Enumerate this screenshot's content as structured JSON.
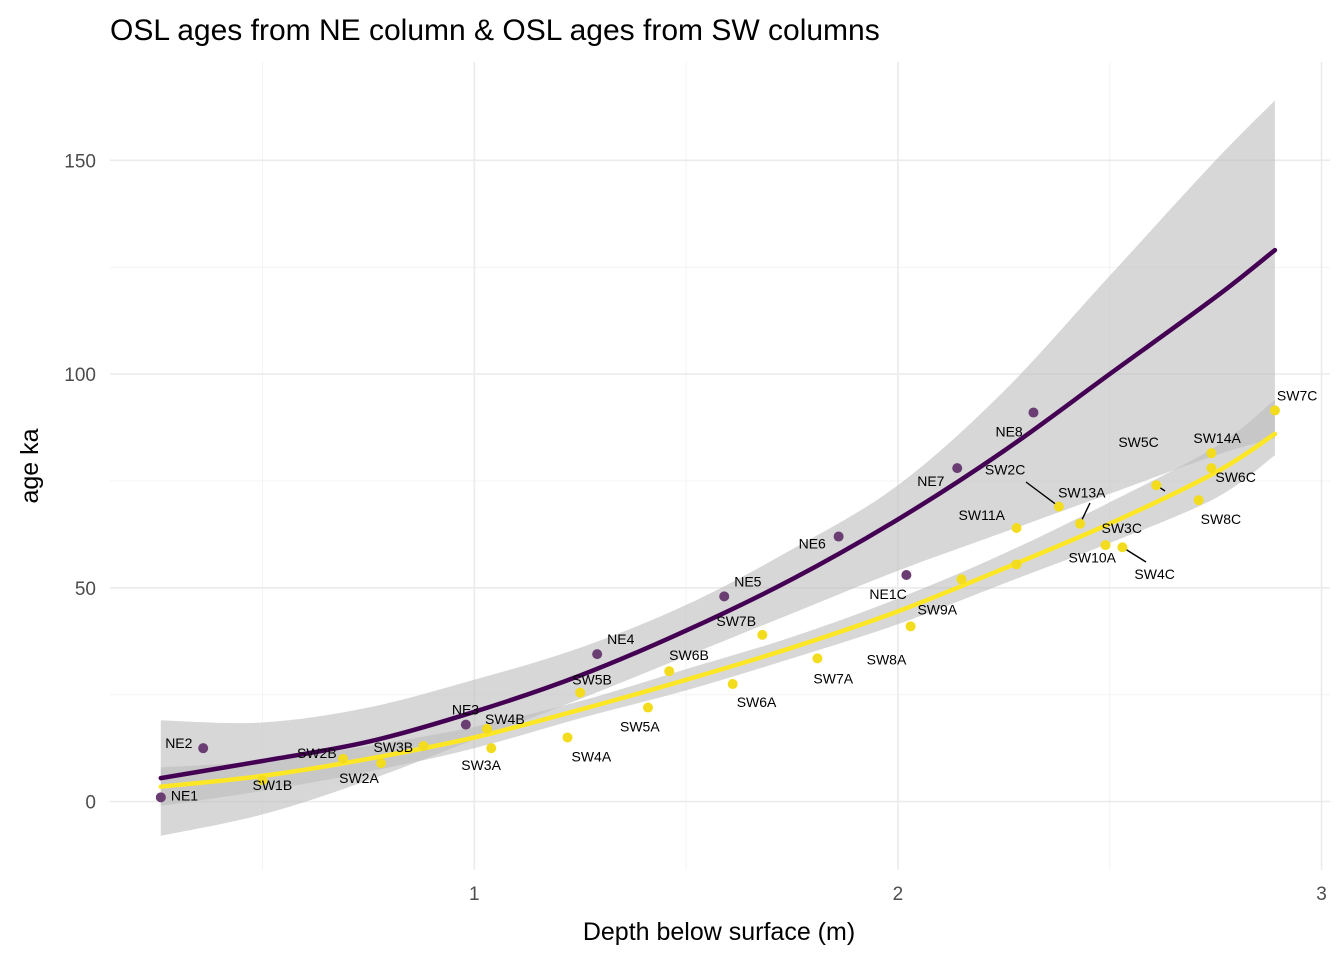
{
  "chart_data": {
    "type": "scatter",
    "title": "OSL ages from NE column & OSL ages from SW columns",
    "xlabel": "Depth below surface (m)",
    "ylabel": "age ka",
    "xlim": [
      0.14,
      3.02
    ],
    "ylim": [
      -16,
      173
    ],
    "x_ticks": [
      1,
      2,
      3
    ],
    "y_ticks": [
      0,
      50,
      100,
      150
    ],
    "grid": true,
    "legend": "none",
    "colors": {
      "ne": "#440154",
      "ne_points": "#6a3d73",
      "sw": "#fde725",
      "sw_points": "#f3dc1d",
      "ribbon": "#bdbdbd",
      "grid": "#ebebeb"
    },
    "series": [
      {
        "points": [
          {
            "label": "NE1",
            "x": 0.26,
            "y": 1
          },
          {
            "label": "NE2",
            "x": 0.36,
            "y": 12.5
          },
          {
            "label": "NE3",
            "x": 0.98,
            "y": 18
          },
          {
            "label": "NE4",
            "x": 1.29,
            "y": 34.5
          },
          {
            "label": "NE5",
            "x": 1.59,
            "y": 48
          },
          {
            "label": "NE6",
            "x": 1.86,
            "y": 62
          },
          {
            "label": "NE1C",
            "x": 2.02,
            "y": 53
          },
          {
            "label": "NE7",
            "x": 2.14,
            "y": 78
          },
          {
            "label": "NE8",
            "x": 2.32,
            "y": 91
          }
        ],
        "fit": {
          "x": [
            0.26,
            0.5,
            0.75,
            1.0,
            1.25,
            1.5,
            1.75,
            2.0,
            2.25,
            2.5,
            2.75,
            2.89
          ],
          "y": [
            5.5,
            9.5,
            14,
            21,
            29.5,
            40,
            52,
            66,
            82,
            100,
            118,
            129
          ],
          "lower": [
            -8,
            -3,
            5,
            14.5,
            24,
            34,
            44,
            54,
            63,
            72,
            81,
            85
          ],
          "upper": [
            19,
            18.5,
            22,
            28.5,
            36,
            46,
            59,
            74,
            96,
            123,
            150,
            164
          ]
        }
      },
      {
        "points": [
          {
            "label": "SW1B",
            "x": 0.5,
            "y": 5
          },
          {
            "label": "SW2B",
            "x": 0.69,
            "y": 10
          },
          {
            "label": "SW2A",
            "x": 0.78,
            "y": 9
          },
          {
            "label": "SW3B",
            "x": 0.88,
            "y": 13
          },
          {
            "label": "SW3A",
            "x": 1.04,
            "y": 12.5
          },
          {
            "label": "SW4B",
            "x": 1.03,
            "y": 17
          },
          {
            "label": "SW4A",
            "x": 1.22,
            "y": 15
          },
          {
            "label": "SW5B",
            "x": 1.25,
            "y": 25.5
          },
          {
            "label": "SW5A",
            "x": 1.41,
            "y": 22
          },
          {
            "label": "SW6B",
            "x": 1.46,
            "y": 30.5
          },
          {
            "label": "SW6A",
            "x": 1.61,
            "y": 27.5
          },
          {
            "label": "SW7B",
            "x": 1.68,
            "y": 39
          },
          {
            "label": "SW7A",
            "x": 1.81,
            "y": 33.5
          },
          {
            "label": "SW8A",
            "x": 2.03,
            "y": 41
          },
          {
            "label": "SW9A",
            "x": 2.15,
            "y": 52
          },
          {
            "label": "SW10A",
            "x": 2.28,
            "y": 55.5
          },
          {
            "label": "SW11A",
            "x": 2.28,
            "y": 64
          },
          {
            "label": "SW2C",
            "x": 2.38,
            "y": 69
          },
          {
            "label": "SW13A",
            "x": 2.43,
            "y": 65
          },
          {
            "label": "SW3C",
            "x": 2.49,
            "y": 60
          },
          {
            "label": "SW4C",
            "x": 2.53,
            "y": 59.5
          },
          {
            "label": "SW5C",
            "x": 2.61,
            "y": 74
          },
          {
            "label": "SW8C",
            "x": 2.71,
            "y": 70.5
          },
          {
            "label": "SW6C",
            "x": 2.74,
            "y": 78
          },
          {
            "label": "SW14A",
            "x": 2.74,
            "y": 81.5
          },
          {
            "label": "SW7C",
            "x": 2.89,
            "y": 91.5
          }
        ],
        "fit": {
          "x": [
            0.26,
            0.5,
            0.75,
            1.0,
            1.25,
            1.5,
            1.75,
            2.0,
            2.25,
            2.5,
            2.75,
            2.89
          ],
          "y": [
            3.5,
            6,
            10,
            15,
            21.5,
            28.5,
            36,
            44.5,
            54.5,
            65,
            77,
            86
          ],
          "lower": [
            -1,
            2.5,
            7,
            12.5,
            19.5,
            26,
            33.5,
            41.5,
            51,
            60.5,
            71,
            81
          ],
          "upper": [
            8,
            9.5,
            13,
            17.5,
            23.5,
            31,
            38.5,
            47.5,
            58,
            70,
            83,
            94
          ]
        }
      }
    ]
  }
}
